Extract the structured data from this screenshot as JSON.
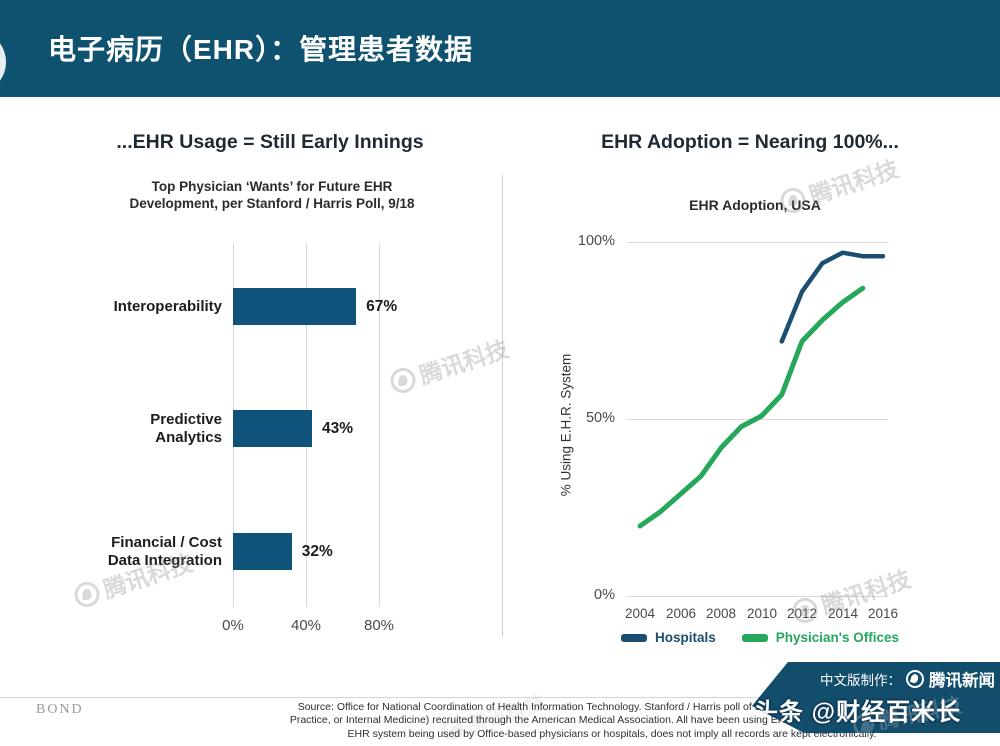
{
  "header": {
    "title": "电子病历（EHR）：管理患者数据"
  },
  "colors": {
    "header_bg": "#0E5270",
    "banner_bg": "#124D6C",
    "bar_fill": "#0F537B",
    "hospitals": "#1B4E71",
    "physicians": "#25A75C",
    "title_text": "#1F2933",
    "grid": "#D9D9D9"
  },
  "watermark": {
    "text": "腾讯科技"
  },
  "chart_data": [
    {
      "type": "bar",
      "orientation": "horizontal",
      "title": "...EHR Usage = Still Early Innings",
      "subtitle_line1": "Top Physician ‘Wants’ for Future EHR",
      "subtitle_line2": "Development, per Stanford / Harris Poll, 9/18",
      "categories": [
        "Interoperability",
        "Predictive Analytics",
        "Financial / Cost Data Integration"
      ],
      "category_lines": [
        [
          "Interoperability"
        ],
        [
          "Predictive",
          "Analytics"
        ],
        [
          "Financial / Cost",
          "Data Integration"
        ]
      ],
      "values": [
        67,
        43,
        32
      ],
      "value_labels": [
        "67%",
        "43%",
        "32%"
      ],
      "x_ticks": [
        "0%",
        "40%",
        "80%"
      ],
      "xlabel": "",
      "ylabel": "",
      "xlim": [
        0,
        80
      ],
      "grid": "vertical"
    },
    {
      "type": "line",
      "title": "EHR Adoption = Nearing 100%...",
      "subtitle": "EHR Adoption, USA",
      "ylabel": "% Using E.H.R. System",
      "xlabel": "",
      "y_ticks": [
        "100%",
        "50%",
        "0%"
      ],
      "x_ticks": [
        "2004",
        "2006",
        "2008",
        "2010",
        "2012",
        "2014",
        "2016"
      ],
      "ylim": [
        0,
        100
      ],
      "xlim": [
        2004,
        2016
      ],
      "grid": "horizontal",
      "legend_position": "bottom",
      "series": [
        {
          "name": "Hospitals",
          "color": "#1B4E71",
          "x": [
            2011,
            2012,
            2013,
            2014,
            2015,
            2016
          ],
          "values": [
            72,
            86,
            94,
            97,
            96,
            96
          ]
        },
        {
          "name": "Physician's Offices",
          "color": "#25A75C",
          "x": [
            2004,
            2005,
            2006,
            2007,
            2008,
            2009,
            2010,
            2011,
            2012,
            2013,
            2014,
            2015
          ],
          "values": [
            20,
            24,
            29,
            34,
            42,
            48,
            51,
            57,
            72,
            78,
            83,
            87
          ]
        }
      ]
    }
  ],
  "footer": {
    "brand": "BOND",
    "source_lines": [
      "Source: Office for National Coordination of Health Information Technology.  Stanford / Harris poll of 521 Primary Care physicians (Family",
      "Practice, or Internal Medicine) recruited through the American Medical Association.  All have been using EHR for at least 1 month. Note that",
      "EHR system being used by Office-based physicians or hospitals, does not imply all records are kept electronically."
    ],
    "banner": {
      "line1_prefix": "中文版制作：",
      "line1_brand": "腾讯新闻",
      "line2": "头条 @财经百米长"
    }
  }
}
